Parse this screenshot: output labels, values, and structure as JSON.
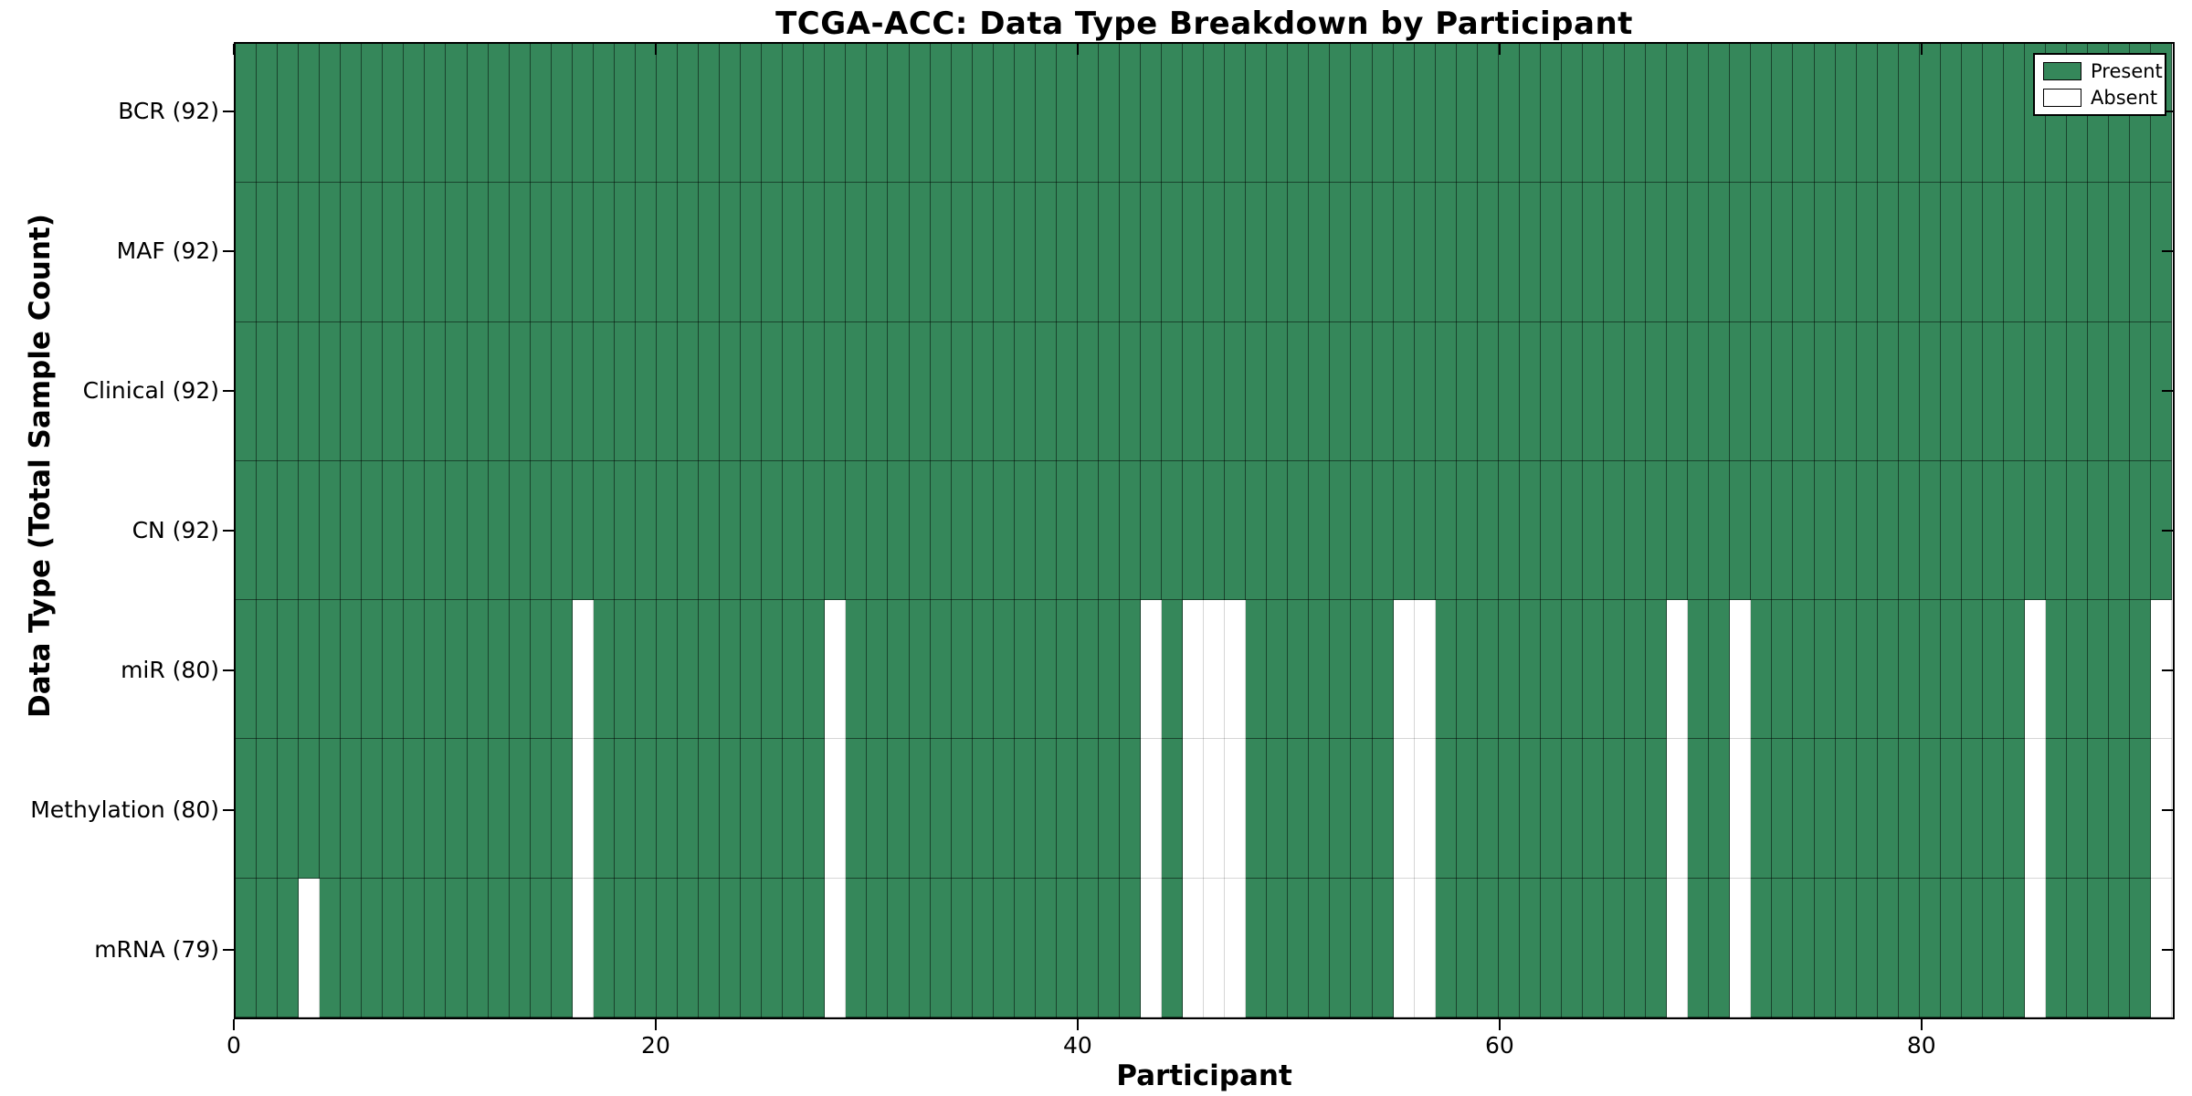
{
  "chart_data": {
    "type": "heatmap",
    "title": "TCGA-ACC: Data Type Breakdown by Participant",
    "xlabel": "Participant",
    "ylabel": "Data Type (Total Sample Count)",
    "n_participants": 92,
    "xlim": [
      0,
      92
    ],
    "x_ticks": [
      0,
      20,
      40,
      60,
      80
    ],
    "grid": "cell-edges",
    "legend_position": "upper right",
    "rows": [
      {
        "label": "BCR (92)",
        "data_type": "BCR",
        "present_count": 92,
        "absent_participants": []
      },
      {
        "label": "MAF (92)",
        "data_type": "MAF",
        "present_count": 92,
        "absent_participants": []
      },
      {
        "label": "Clinical (92)",
        "data_type": "Clinical",
        "present_count": 92,
        "absent_participants": []
      },
      {
        "label": "CN (92)",
        "data_type": "CN",
        "present_count": 92,
        "absent_participants": []
      },
      {
        "label": "miR (80)",
        "data_type": "miR",
        "present_count": 80,
        "absent_participants": [
          16,
          28,
          43,
          45,
          46,
          47,
          55,
          56,
          68,
          71,
          85,
          91
        ]
      },
      {
        "label": "Methylation (80)",
        "data_type": "Methylation",
        "present_count": 80,
        "absent_participants": [
          16,
          28,
          43,
          45,
          46,
          47,
          55,
          56,
          68,
          71,
          85,
          91
        ]
      },
      {
        "label": "mRNA (79)",
        "data_type": "mRNA",
        "present_count": 79,
        "absent_participants": [
          3,
          16,
          28,
          43,
          45,
          46,
          47,
          55,
          56,
          68,
          71,
          85,
          91
        ]
      }
    ],
    "legend": [
      {
        "label": "Present",
        "color": "#35875a"
      },
      {
        "label": "Absent",
        "color": "#ffffff"
      }
    ],
    "colors": {
      "present": "#35875a",
      "absent": "#ffffff",
      "edge": "#000000",
      "background": "#ffffff"
    }
  }
}
